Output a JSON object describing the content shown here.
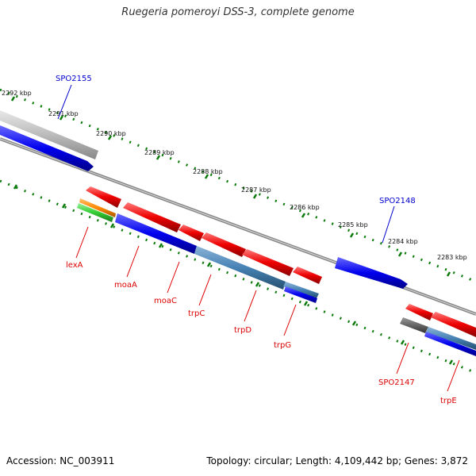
{
  "title": "Ruegeria pomeroyi DSS-3, complete genome",
  "footer": {
    "accession": "Accession: NC_003911",
    "topology": "Topology: circular; Length: 4,109,442 bp; Genes: 3,872"
  },
  "scale_labels": [
    "2292 kbp",
    "2291 kbp",
    "2290 kbp",
    "2289 kbp",
    "2288 kbp",
    "2287 kbp",
    "2286 kbp",
    "2285 kbp",
    "2284 kbp",
    "2283 kbp"
  ],
  "gene_labels": {
    "forward": [
      "SPO2155",
      "SPO2148"
    ],
    "reverse": [
      "lexA",
      "moaA",
      "moaC",
      "trpC",
      "trpD",
      "trpG",
      "SPO2147",
      "trpE"
    ]
  },
  "colors": {
    "forward_label": "#0000cc",
    "reverse_label": "#dd0000",
    "cds_forward": "#0000ee",
    "cds_reverse": "#ee0000",
    "cds_steel": "#4682b4",
    "backbone": "#888888",
    "scale_ticks": "#0a7a0a",
    "grey_feature": "#999999",
    "orange_feature": "#ff8800",
    "green_feature": "#33cc33"
  }
}
